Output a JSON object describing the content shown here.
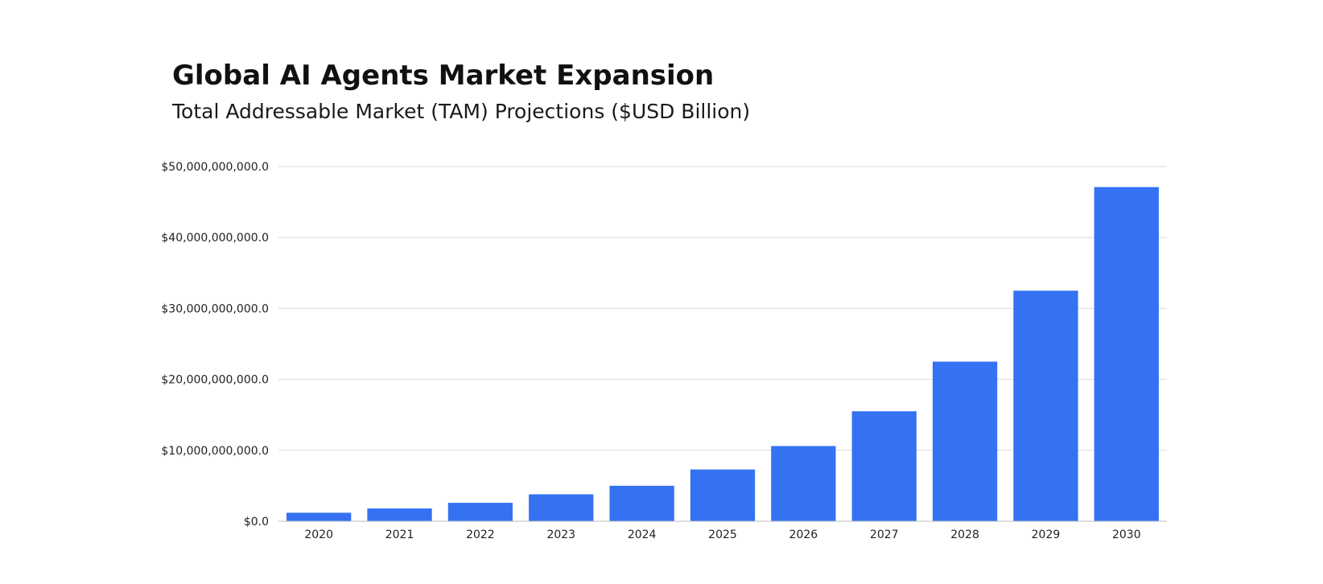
{
  "colors": {
    "bar": "#3572F2",
    "grid": "#d9d9d9",
    "axis": "#bdbdbd",
    "text": "#222222"
  },
  "chart_data": {
    "type": "bar",
    "title": "Global AI Agents Market Expansion",
    "subtitle": "Total Addressable Market (TAM) Projections ($USD Billion)",
    "xlabel": "",
    "ylabel": "",
    "categories": [
      "2020",
      "2021",
      "2022",
      "2023",
      "2024",
      "2025",
      "2026",
      "2027",
      "2028",
      "2029",
      "2030"
    ],
    "values": [
      1200000000,
      1800000000,
      2600000000,
      3800000000,
      5000000000,
      7300000000,
      10600000000,
      15500000000,
      22500000000,
      32500000000,
      47100000000
    ],
    "ylim": [
      0,
      50000000000
    ],
    "yticks": [
      0,
      10000000000,
      20000000000,
      30000000000,
      40000000000,
      50000000000
    ],
    "ytick_labels": [
      "$0.0",
      "$10,000,000,000.0",
      "$20,000,000,000.0",
      "$30,000,000,000.0",
      "$40,000,000,000.0",
      "$50,000,000,000.0"
    ],
    "grid": true,
    "legend": "none"
  }
}
